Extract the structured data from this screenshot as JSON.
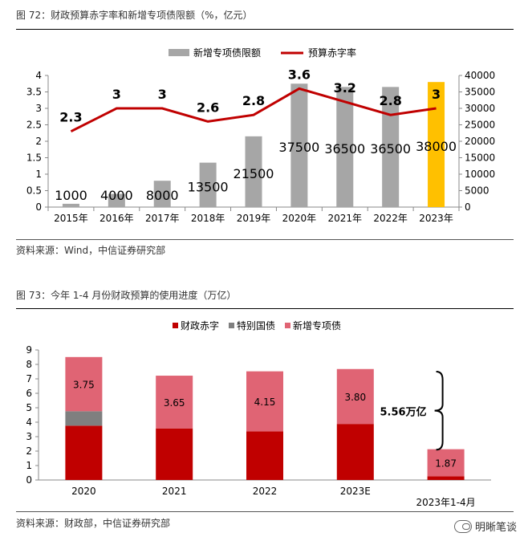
{
  "figure1": {
    "title": "图 72：财政预算赤字率和新增专项债限额（%，亿元）",
    "source": "资料来源：Wind，中信证券研究部",
    "chart_data": {
      "type": "bar+line",
      "categories": [
        "2015年",
        "2016年",
        "2017年",
        "2018年",
        "2019年",
        "2020年",
        "2021年",
        "2022年",
        "2023年"
      ],
      "series": [
        {
          "name": "新增专项债限额",
          "type": "bar",
          "axis": "right",
          "values": [
            1000,
            4000,
            8000,
            13500,
            21500,
            37500,
            36500,
            36500,
            38000
          ],
          "labels": [
            "1000",
            "4000",
            "8000",
            "13500",
            "21500",
            "37500",
            "36500",
            "36500",
            "38000"
          ],
          "highlight_index": 8
        },
        {
          "name": "预算赤字率",
          "type": "line",
          "axis": "left",
          "values": [
            2.3,
            3,
            3,
            2.6,
            2.8,
            3.6,
            3.2,
            2.8,
            3
          ],
          "labels": [
            "2.3",
            "3",
            "3",
            "2.6",
            "2.8",
            "3.6",
            "3.2",
            "2.8",
            "3"
          ]
        }
      ],
      "y_left": {
        "min": 0,
        "max": 4,
        "ticks": [
          "0",
          "0.5",
          "1",
          "1.5",
          "2",
          "2.5",
          "3",
          "3.5",
          "4"
        ]
      },
      "y_right": {
        "min": 0,
        "max": 40000,
        "ticks": [
          "0",
          "5000",
          "10000",
          "15000",
          "20000",
          "25000",
          "30000",
          "35000",
          "40000"
        ]
      },
      "legend_position": "top",
      "colors": {
        "bar": "#a6a6a6",
        "bar_highlight": "#ffc000",
        "line": "#c00000"
      }
    }
  },
  "figure2": {
    "title": "图 73：今年 1-4 月份财政预算的使用进度（万亿）",
    "source": "资料来源：财政部，中信证券研究部",
    "chart_data": {
      "type": "stacked-bar",
      "categories": [
        "2020",
        "2021",
        "2022",
        "2023E",
        "2023年1-4月"
      ],
      "series": [
        {
          "name": "财政赤字",
          "values": [
            3.76,
            3.57,
            3.37,
            3.88,
            0.26
          ]
        },
        {
          "name": "特别国债",
          "values": [
            1.0,
            0,
            0,
            0,
            0
          ]
        },
        {
          "name": "新增专项债",
          "values": [
            3.75,
            3.65,
            4.15,
            3.8,
            1.87
          ],
          "labels": [
            "3.75",
            "3.65",
            "4.15",
            "3.80",
            "1.87"
          ]
        }
      ],
      "y": {
        "min": 0,
        "max": 9,
        "ticks": [
          "0",
          "1",
          "2",
          "3",
          "4",
          "5",
          "6",
          "7",
          "8",
          "9"
        ]
      },
      "annotation": "5.56万亿",
      "legend_position": "top",
      "colors": {
        "deficit": "#c00000",
        "special_treasury": "#7f7f7f",
        "special_bond": "#e06474"
      }
    }
  },
  "watermark": {
    "text": "明晰笔谈",
    "icon": "wechat-icon"
  }
}
